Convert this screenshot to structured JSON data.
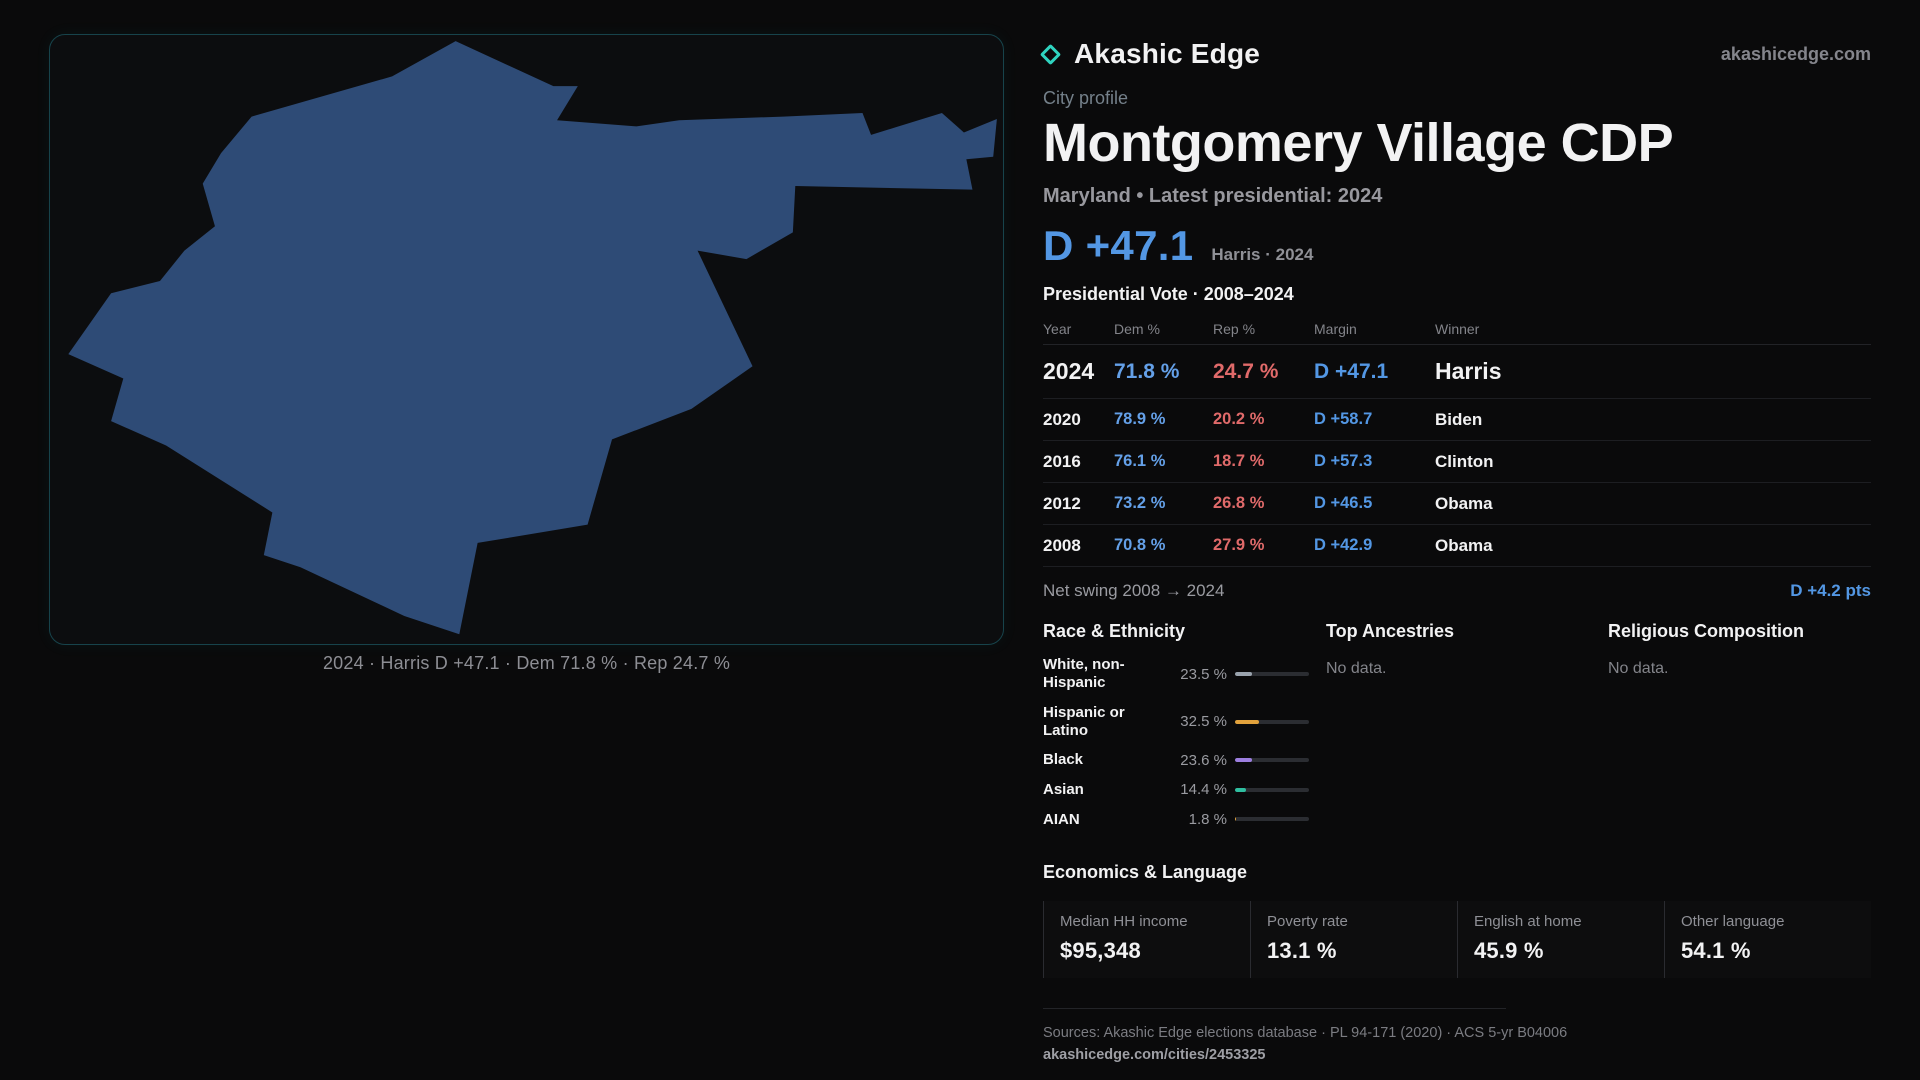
{
  "brand": {
    "name": "Akashic Edge",
    "domain": "akashicedge.com"
  },
  "icons": {
    "brand_diamond": "diamond-outline"
  },
  "colors": {
    "dem_blue": "#5397e4",
    "rep_red": "#e06a6a",
    "accent_teal": "#2fd4c0",
    "map_shape": "#2e4b76"
  },
  "map": {
    "caption": "2024 · Harris D +47.1 · Dem 71.8 % · Rep 24.7 %"
  },
  "profile": {
    "kicker": "City profile",
    "title": "Montgomery Village CDP",
    "subtitle": "Maryland • Latest presidential: 2024",
    "headline_margin": "D +47.1",
    "headline_context": "Harris · 2024"
  },
  "votes": {
    "section_title": "Presidential Vote · 2008–2024",
    "columns": [
      "Year",
      "Dem %",
      "Rep %",
      "Margin",
      "Winner"
    ],
    "rows": [
      {
        "year": "2024",
        "dem": "71.8 %",
        "rep": "24.7 %",
        "margin": "D +47.1",
        "winner": "Harris"
      },
      {
        "year": "2020",
        "dem": "78.9 %",
        "rep": "20.2 %",
        "margin": "D +58.7",
        "winner": "Biden"
      },
      {
        "year": "2016",
        "dem": "76.1 %",
        "rep": "18.7 %",
        "margin": "D +57.3",
        "winner": "Clinton"
      },
      {
        "year": "2012",
        "dem": "73.2 %",
        "rep": "26.8 %",
        "margin": "D +46.5",
        "winner": "Obama"
      },
      {
        "year": "2008",
        "dem": "70.8 %",
        "rep": "27.9 %",
        "margin": "D +42.9",
        "winner": "Obama"
      }
    ],
    "net_swing_label": "Net swing 2008 → 2024",
    "net_swing_value": "D +4.2 pts"
  },
  "race": {
    "section_title": "Race & Ethnicity",
    "rows": [
      {
        "label": "White, non-Hispanic",
        "value": "23.5 %",
        "pct": 23.5,
        "color": "#9aa3ad"
      },
      {
        "label": "Hispanic or Latino",
        "value": "32.5 %",
        "pct": 32.5,
        "color": "#e2a23c"
      },
      {
        "label": "Black",
        "value": "23.6 %",
        "pct": 23.6,
        "color": "#9d7fe0"
      },
      {
        "label": "Asian",
        "value": "14.4 %",
        "pct": 14.4,
        "color": "#2fbfa0"
      },
      {
        "label": "AIAN",
        "value": "1.8 %",
        "pct": 1.8,
        "color": "#e2a23c"
      }
    ]
  },
  "ancestries": {
    "section_title": "Top Ancestries",
    "empty": "No data."
  },
  "religion": {
    "section_title": "Religious Composition",
    "empty": "No data."
  },
  "economics": {
    "section_title": "Economics & Language",
    "stats": [
      {
        "label": "Median HH income",
        "value": "$95,348"
      },
      {
        "label": "Poverty rate",
        "value": "13.1 %"
      },
      {
        "label": "English at home",
        "value": "45.9 %"
      },
      {
        "label": "Other language",
        "value": "54.1 %"
      }
    ]
  },
  "footer": {
    "sources": "Sources: Akashic Edge elections database · PL 94-171 (2020) · ACS 5-yr B04006",
    "permalink": "akashicedge.com/cities/2453325"
  }
}
